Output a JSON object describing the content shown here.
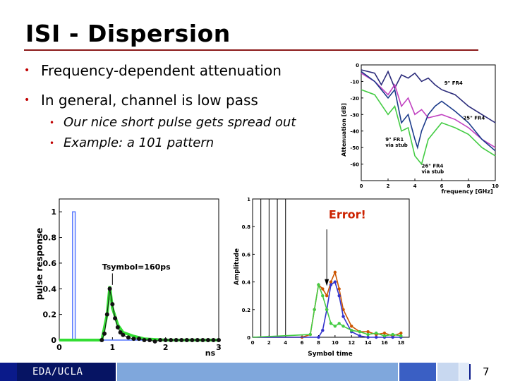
{
  "slide": {
    "title": "ISI - Dispersion",
    "bullets": [
      "Frequency-dependent attenuation",
      "In general, channel is low pass"
    ],
    "sub_bullets": [
      "Our nice short pulse gets spread out",
      "Example: a 101 pattern"
    ],
    "footer_label": "EDA/UCLA",
    "page_number": "7"
  },
  "chart_data": [
    {
      "type": "line",
      "ylabel": "Attenuation [dB]",
      "xlabel": "frequency [GHz]",
      "xlim": [
        0,
        10
      ],
      "ylim": [
        -70,
        0
      ],
      "x_ticks": [
        "0",
        "2",
        "4",
        "6",
        "8",
        "10"
      ],
      "y_ticks": [
        "0",
        "-10",
        "-20",
        "-30",
        "-40",
        "-50",
        "-60"
      ],
      "annotations": [
        "9\" FR4",
        "25\" FR4",
        "9\" FR1, via stub",
        "26\" FR4, via stub"
      ],
      "series": [
        {
          "name": "9\" FR4",
          "color": "#2b2b7a",
          "x": [
            0,
            1,
            1.5,
            2,
            2.5,
            3,
            3.5,
            4,
            4.5,
            5,
            5.5,
            6,
            7,
            8,
            9,
            10
          ],
          "y": [
            -3,
            -5,
            -12,
            -4,
            -14,
            -6,
            -8,
            -5,
            -10,
            -8,
            -12,
            -15,
            -18,
            -25,
            -30,
            -35
          ]
        },
        {
          "name": "25\" FR4",
          "color": "#c040c0",
          "x": [
            0,
            1,
            2,
            2.5,
            3,
            3.5,
            4,
            4.5,
            5,
            6,
            7,
            8,
            9,
            10
          ],
          "y": [
            -5,
            -10,
            -18,
            -12,
            -25,
            -20,
            -30,
            -27,
            -32,
            -30,
            -33,
            -38,
            -45,
            -50
          ]
        },
        {
          "name": "9\" FR1, via stub",
          "color": "#1a3a8a",
          "x": [
            0,
            1,
            2,
            2.5,
            3,
            3.5,
            4,
            4.2,
            4.5,
            5,
            5.5,
            6,
            7,
            8,
            9,
            10
          ],
          "y": [
            -4,
            -10,
            -20,
            -15,
            -35,
            -30,
            -45,
            -50,
            -40,
            -30,
            -25,
            -22,
            -28,
            -35,
            -45,
            -52
          ]
        },
        {
          "name": "26\" FR4, via stub",
          "color": "#44cc44",
          "x": [
            0,
            1,
            2,
            2.5,
            3,
            3.5,
            4,
            4.5,
            5,
            6,
            7,
            8,
            9,
            10
          ],
          "y": [
            -15,
            -18,
            -30,
            -25,
            -40,
            -38,
            -55,
            -60,
            -45,
            -35,
            -38,
            -42,
            -50,
            -55
          ]
        }
      ]
    },
    {
      "type": "line",
      "ylabel": "pulse response",
      "xlabel": "ns",
      "xlim": [
        0,
        3
      ],
      "ylim": [
        0,
        1.1
      ],
      "x_ticks": [
        "0",
        "1",
        "2",
        "3"
      ],
      "y_ticks": [
        "0",
        "0.2",
        "0.4",
        "0.6",
        "0.8",
        "1"
      ],
      "annotations": [
        "Tsymbol=160ps"
      ],
      "series": [
        {
          "name": "",
          "color": "#5577ff",
          "x": [
            0,
            0.25,
            0.25,
            0.3,
            0.3,
            3
          ],
          "y": [
            0,
            0,
            1,
            1,
            0,
            0
          ]
        },
        {
          "name": "",
          "color": "#33dd33",
          "x": [
            0,
            0.8,
            0.9,
            0.95,
            1.0,
            1.1,
            1.2,
            1.4,
            1.6,
            2.0,
            2.5,
            3.0
          ],
          "y": [
            0,
            0,
            0.2,
            0.42,
            0.25,
            0.12,
            0.06,
            0.03,
            0.01,
            0.0,
            0.0,
            0.0
          ]
        },
        {
          "name": "",
          "color": "#111111",
          "x": [
            0.8,
            0.85,
            0.9,
            0.95,
            1.0,
            1.05,
            1.1,
            1.15,
            1.2,
            1.3,
            1.4,
            1.5,
            1.6,
            1.7,
            1.8,
            1.9,
            2.0,
            2.1,
            2.2,
            2.3,
            2.4,
            2.5,
            2.6,
            2.7,
            2.8,
            2.9,
            3.0
          ],
          "y": [
            0,
            0.05,
            0.2,
            0.4,
            0.28,
            0.17,
            0.1,
            0.06,
            0.04,
            0.02,
            0.01,
            0.01,
            0.0,
            0.0,
            -0.01,
            0.0,
            0.0,
            0.0,
            0.0,
            0.0,
            0.0,
            0.0,
            0.0,
            0.0,
            0.0,
            0.0,
            0.0
          ]
        }
      ]
    },
    {
      "type": "line",
      "ylabel": "Amplitude",
      "xlabel": "Symbol time",
      "xlim": [
        0,
        19
      ],
      "ylim": [
        0,
        1.0
      ],
      "x_ticks": [
        "0",
        "2",
        "4",
        "6",
        "8",
        "10",
        "12",
        "14",
        "16",
        "18"
      ],
      "y_ticks": [
        "0",
        "0.2",
        "0.4",
        "0.6",
        "0.8",
        "1"
      ],
      "annotations": [
        "Error!"
      ],
      "pulses": [
        [
          1,
          2
        ],
        [
          3,
          4
        ]
      ],
      "series": [
        {
          "name": "",
          "color": "#cc5500",
          "x": [
            0,
            6,
            7,
            7.5,
            8,
            8.5,
            9,
            9.5,
            10,
            10.5,
            11,
            12,
            13,
            14,
            15,
            16,
            17,
            18
          ],
          "y": [
            0,
            0,
            0.02,
            0.2,
            0.38,
            0.35,
            0.3,
            0.4,
            0.47,
            0.35,
            0.2,
            0.08,
            0.04,
            0.04,
            0.02,
            0.03,
            0.01,
            0.03
          ]
        },
        {
          "name": "",
          "color": "#3333cc",
          "x": [
            0,
            8,
            8.5,
            9,
            9.5,
            10,
            10.5,
            11,
            12,
            13,
            14,
            15,
            16,
            17,
            18
          ],
          "y": [
            0,
            0,
            0.05,
            0.2,
            0.38,
            0.4,
            0.3,
            0.15,
            0.04,
            0.01,
            0.0,
            0.0,
            0.0,
            0.0,
            0.0
          ]
        },
        {
          "name": "",
          "color": "#44cc44",
          "x": [
            0,
            7,
            7.5,
            8,
            8.5,
            9,
            9.5,
            10,
            10.5,
            11,
            12,
            13,
            14,
            15,
            16,
            17,
            18
          ],
          "y": [
            0,
            0.02,
            0.2,
            0.38,
            0.3,
            0.2,
            0.1,
            0.08,
            0.1,
            0.08,
            0.05,
            0.04,
            0.02,
            0.03,
            0.01,
            0.02,
            0.01
          ]
        }
      ]
    }
  ]
}
